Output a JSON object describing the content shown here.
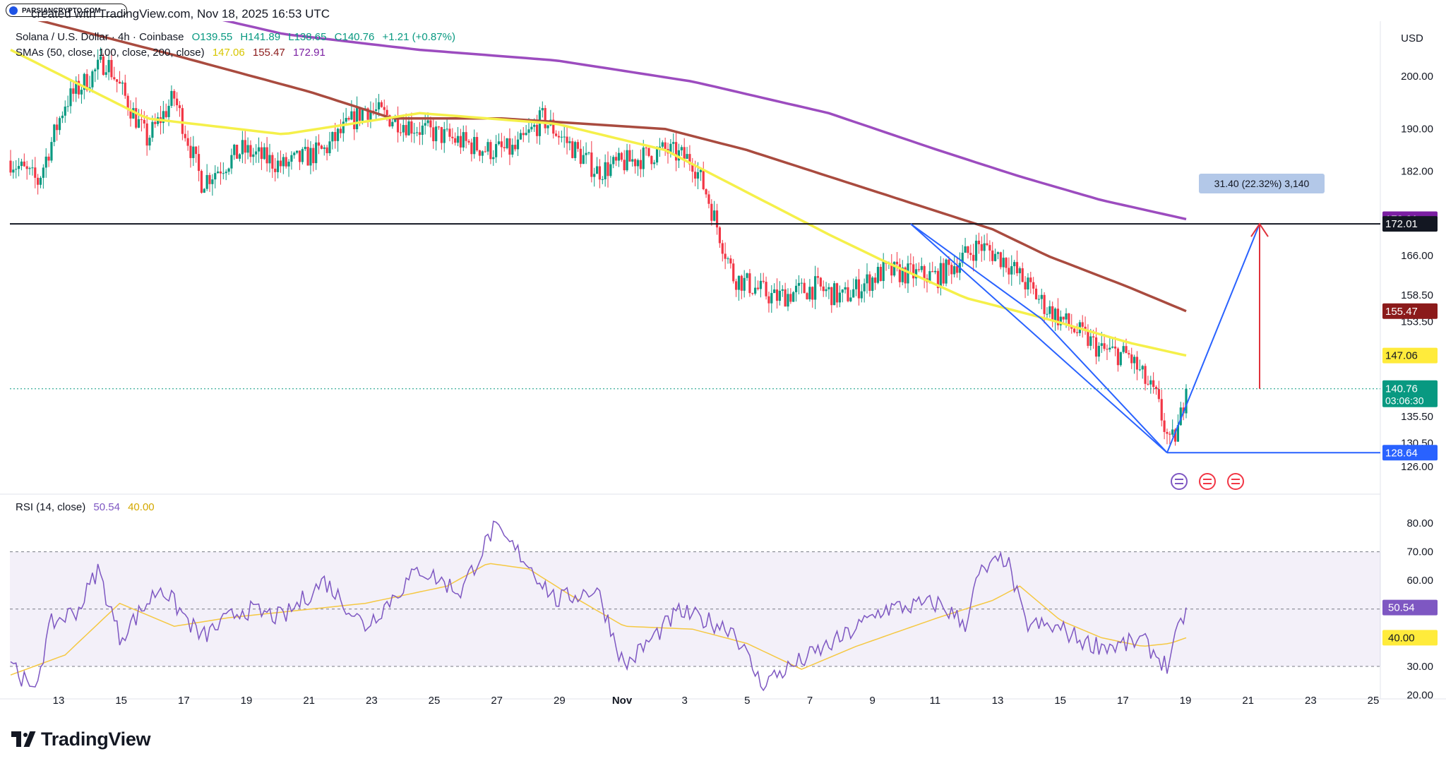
{
  "watermark": "PARSIANCRYPTO.COM",
  "top_note": "created with TradingView.com, Nov 18, 2025 16:53 UTC",
  "currency_label": "USD",
  "brand": "TradingView",
  "symbol": {
    "title": "Solana / U.S. Dollar · 4h · Coinbase",
    "open": "O139.55",
    "high": "H141.89",
    "low": "L138.65",
    "close": "C140.76",
    "change": "+1.21 (+0.87%)"
  },
  "sma_legend": {
    "label": "SMAs (50, close, 100, close, 200, close)",
    "v50": "147.06",
    "v100": "155.47",
    "v200": "172.91"
  },
  "rsi_legend": {
    "label": "RSI (14, close)",
    "value": "50.54",
    "ma": "40.00"
  },
  "measure_label": "31.40 (22.32%) 3,140",
  "colors": {
    "up": "#089981",
    "down": "#f23645",
    "sma50": "#f5f04a",
    "sma100": "#a94b3f",
    "sma200": "#9c4cbf",
    "rsi": "#7e57c2",
    "rsi_ma": "#f5c842",
    "pattern": "#2962ff",
    "resistance": "#131722",
    "target_arrow": "#e0313b"
  },
  "price_axis": {
    "ticks": [
      "200.00",
      "190.00",
      "182.00",
      "166.00",
      "158.50",
      "153.50",
      "135.50",
      "130.50",
      "126.00"
    ],
    "badges": [
      {
        "label": "172.91",
        "bg": "#7b1fa2"
      },
      {
        "label": "172.01",
        "bg": "#131722"
      },
      {
        "label": "155.47",
        "bg": "#8b1a1a"
      },
      {
        "label": "147.06",
        "bg": "#ffeb3b"
      },
      {
        "label": "140.76",
        "bg": "#089981"
      },
      {
        "label": "128.64",
        "bg": "#2962ff"
      }
    ],
    "countdown": "03:06:30"
  },
  "rsi_axis": {
    "ticks": [
      "80.00",
      "70.00",
      "60.00",
      "30.00",
      "20.00"
    ]
  },
  "time_axis": [
    "13",
    "15",
    "17",
    "19",
    "21",
    "23",
    "25",
    "27",
    "29",
    "Nov",
    "3",
    "5",
    "7",
    "9",
    "11",
    "13",
    "15",
    "17",
    "19",
    "21",
    "23",
    "25"
  ],
  "chart_data": {
    "type": "candlestick",
    "title": "Solana / U.S. Dollar · 4h · Coinbase",
    "ylim": [
      123,
      212
    ],
    "resistance_level": 172.01,
    "pattern_low": 128.64,
    "last_close": 140.76,
    "target": 172.16,
    "sma50_anchors": [
      [
        0,
        205
      ],
      [
        50,
        192
      ],
      [
        100,
        189
      ],
      [
        150,
        193
      ],
      [
        200,
        191
      ],
      [
        240,
        186
      ],
      [
        270,
        178
      ],
      [
        300,
        170
      ],
      [
        320,
        165
      ],
      [
        350,
        158
      ],
      [
        380,
        154
      ],
      [
        410,
        149.5
      ],
      [
        431,
        147.06
      ]
    ],
    "sma100_anchors": [
      [
        0,
        212
      ],
      [
        60,
        204
      ],
      [
        110,
        197
      ],
      [
        140,
        192
      ],
      [
        180,
        192
      ],
      [
        240,
        190
      ],
      [
        270,
        186
      ],
      [
        300,
        181
      ],
      [
        330,
        176
      ],
      [
        360,
        171
      ],
      [
        380,
        166
      ],
      [
        410,
        160
      ],
      [
        431,
        155.47
      ]
    ],
    "sma200_anchors": [
      [
        0,
        220
      ],
      [
        100,
        208
      ],
      [
        150,
        205
      ],
      [
        200,
        203
      ],
      [
        250,
        199
      ],
      [
        300,
        193
      ],
      [
        340,
        186
      ],
      [
        370,
        181
      ],
      [
        400,
        176.5
      ],
      [
        431,
        172.91
      ]
    ],
    "rsi_range": [
      15,
      83
    ],
    "rsi_bands": [
      70,
      50,
      30
    ],
    "rsi_last": 50.54,
    "rsi_ma_last": 40.0
  }
}
